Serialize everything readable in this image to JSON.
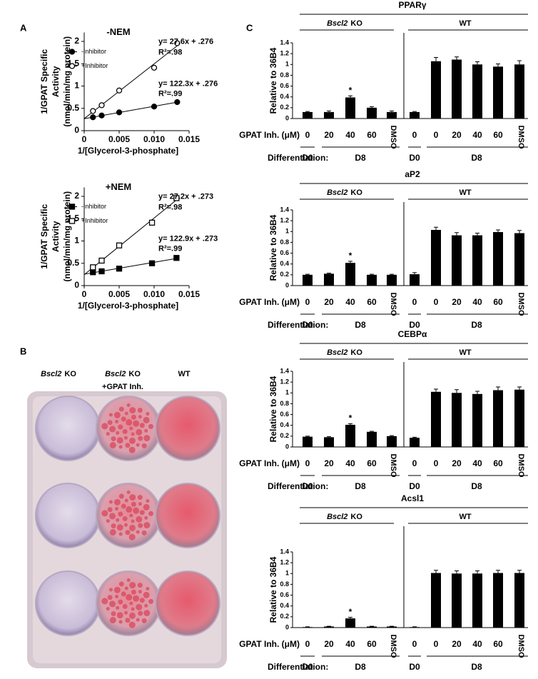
{
  "panel_labels": [
    "A",
    "B",
    "C"
  ],
  "panel_b": {
    "labels": [
      {
        "italic": "Bscl2",
        "text": "KO"
      },
      {
        "italic": "Bscl2",
        "text": "KO",
        "line2": "+GPAT Inh."
      },
      {
        "text": "WT"
      }
    ]
  },
  "chart_data": [
    {
      "type": "scatter",
      "title": "-NEM",
      "xlabel": "1/[Glycerol-3-phosphate]",
      "ylabel": [
        "1/GPAT Specific",
        "Activity",
        "(nmol/min/mg protein)"
      ],
      "marker": "circle",
      "x": [
        0.00125,
        0.0025,
        0.005,
        0.01,
        0.0133
      ],
      "xlim": [
        0,
        0.015
      ],
      "xticks": [
        0,
        0.005,
        {
          "value": 0.01,
          "label": "0.010"
        },
        0.015
      ],
      "ylim": [
        0,
        2.2
      ],
      "yticks": [
        0,
        0.5,
        1,
        1.5,
        2
      ],
      "series": [
        {
          "name": "-Inhibitor",
          "color": "#000000",
          "filled": true,
          "values": [
            0.3,
            0.34,
            0.41,
            0.54,
            0.64
          ]
        },
        {
          "name": "+Inhibitor",
          "color": "#000000",
          "filled": false,
          "values": [
            0.44,
            0.57,
            0.9,
            1.41,
            1.96
          ]
        }
      ],
      "annotations": [
        "y= 27.6x + .276",
        "R²=.98",
        "y= 122.3x + .276",
        "R²=.99"
      ]
    },
    {
      "type": "scatter",
      "title": "+NEM",
      "xlabel": "1/[Glycerol-3-phosphate]",
      "ylabel": [
        "1/GPAT Specific",
        "Activity",
        "(nmol/min/mg protein)"
      ],
      "marker": "square",
      "x": [
        0.00125,
        0.0025,
        0.005,
        0.0097,
        0.0132
      ],
      "xlim": [
        0,
        0.015
      ],
      "xticks": [
        0,
        0.005,
        {
          "value": 0.01,
          "label": "0.010"
        },
        0.015
      ],
      "ylim": [
        0,
        2.2
      ],
      "yticks": [
        0,
        0.5,
        1,
        1.5,
        2
      ],
      "series": [
        {
          "name": "-Inhibitor",
          "color": "#000000",
          "filled": true,
          "values": [
            0.3,
            0.32,
            0.38,
            0.5,
            0.62
          ]
        },
        {
          "name": "+Inhibitor",
          "color": "#000000",
          "filled": false,
          "values": [
            0.41,
            0.56,
            0.9,
            1.41,
            1.96
          ]
        }
      ],
      "annotations": [
        "y= 27.2x + .273",
        "R²=.98",
        "y= 122.9x + .273",
        "R²=.99"
      ]
    },
    {
      "type": "bar",
      "title": "PPARγ",
      "ylabel": "Relative to 36B4",
      "color": "#000000",
      "groups": [
        {
          "italic": "Bscl2",
          "text": "KO"
        },
        {
          "text": "WT"
        }
      ],
      "categories": [
        "0",
        "20",
        "40",
        "60",
        "DMSO",
        "0",
        "0",
        "20",
        "40",
        "60",
        "DMSO"
      ],
      "values": [
        0.12,
        0.12,
        0.39,
        0.2,
        0.12,
        0.12,
        1.06,
        1.09,
        1.0,
        0.96,
        1.0
      ],
      "errors": [
        0.01,
        0.02,
        0.03,
        0.02,
        0.02,
        0.01,
        0.07,
        0.05,
        0.05,
        0.05,
        0.07
      ],
      "ylim": [
        0,
        1.4
      ],
      "yticks": [
        0,
        0.2,
        0.4,
        0.6,
        0.8,
        1,
        1.2,
        1.4
      ],
      "x_row_label": "GPAT Inh. (μM)",
      "differentiation_label": "Differentiation:",
      "stages": [
        "D0",
        "D8",
        "D0",
        "D8"
      ],
      "annotations": [
        "*"
      ]
    },
    {
      "type": "bar",
      "title": "aP2",
      "ylabel": "Relative to 36B4",
      "color": "#000000",
      "groups": [
        {
          "italic": "Bscl2",
          "text": "KO"
        },
        {
          "text": "WT"
        }
      ],
      "categories": [
        "0",
        "20",
        "40",
        "60",
        "DMSO",
        "0",
        "0",
        "20",
        "40",
        "60",
        "DMSO"
      ],
      "values": [
        0.2,
        0.22,
        0.42,
        0.2,
        0.2,
        0.21,
        1.03,
        0.93,
        0.93,
        0.99,
        0.97
      ],
      "errors": [
        0.01,
        0.01,
        0.03,
        0.01,
        0.01,
        0.03,
        0.05,
        0.05,
        0.04,
        0.04,
        0.05
      ],
      "ylim": [
        0,
        1.4
      ],
      "yticks": [
        0,
        0.2,
        0.4,
        0.6,
        0.8,
        1,
        1.2,
        1.4
      ],
      "x_row_label": "GPAT Inh. (μM)",
      "differentiation_label": "Differentiation:",
      "stages": [
        "D0",
        "D8",
        "D0",
        "D8"
      ],
      "annotations": [
        "*"
      ]
    },
    {
      "type": "bar",
      "title": "CEBPα",
      "ylabel": "Relative to 36B4",
      "color": "#000000",
      "groups": [
        {
          "italic": "Bscl2",
          "text": "KO"
        },
        {
          "text": "WT"
        }
      ],
      "categories": [
        "0",
        "20",
        "40",
        "60",
        "DMSO",
        "0",
        "0",
        "20",
        "40",
        "60",
        "DMSO"
      ],
      "values": [
        0.19,
        0.18,
        0.41,
        0.28,
        0.2,
        0.17,
        1.02,
        1.0,
        0.98,
        1.05,
        1.06
      ],
      "errors": [
        0.01,
        0.01,
        0.02,
        0.01,
        0.01,
        0.01,
        0.05,
        0.06,
        0.05,
        0.06,
        0.05
      ],
      "ylim": [
        0,
        1.4
      ],
      "yticks": [
        0,
        0.2,
        0.4,
        0.6,
        0.8,
        1,
        1.2,
        1.4
      ],
      "x_row_label": "GPAT Inh. (μM)",
      "differentiation_label": "Differentiation:",
      "stages": [
        "D0",
        "D8",
        "D0",
        "D8"
      ],
      "annotations": [
        "*"
      ]
    },
    {
      "type": "bar",
      "title": "Acsl1",
      "ylabel": "Relative to 36B4",
      "color": "#000000",
      "groups": [
        {
          "italic": "Bscl2",
          "text": "KO"
        },
        {
          "text": "WT"
        }
      ],
      "categories": [
        "0",
        "20",
        "40",
        "60",
        "DMSO",
        "0",
        "0",
        "20",
        "40",
        "60",
        "DMSO"
      ],
      "values": [
        0.01,
        0.02,
        0.17,
        0.02,
        0.02,
        0.01,
        1.01,
        1.0,
        1.0,
        1.01,
        1.01
      ],
      "errors": [
        0.005,
        0.005,
        0.02,
        0.005,
        0.005,
        0.005,
        0.05,
        0.05,
        0.05,
        0.05,
        0.05
      ],
      "ylim": [
        0,
        1.4
      ],
      "yticks": [
        0,
        0.2,
        0.4,
        0.6,
        0.8,
        1,
        1.2,
        1.4
      ],
      "x_row_label": "GPAT Inh. (μM)",
      "differentiation_label": "Differentiation:",
      "stages": [
        "D0",
        "D8",
        "D0",
        "D8"
      ],
      "annotations": [
        "*"
      ]
    }
  ]
}
